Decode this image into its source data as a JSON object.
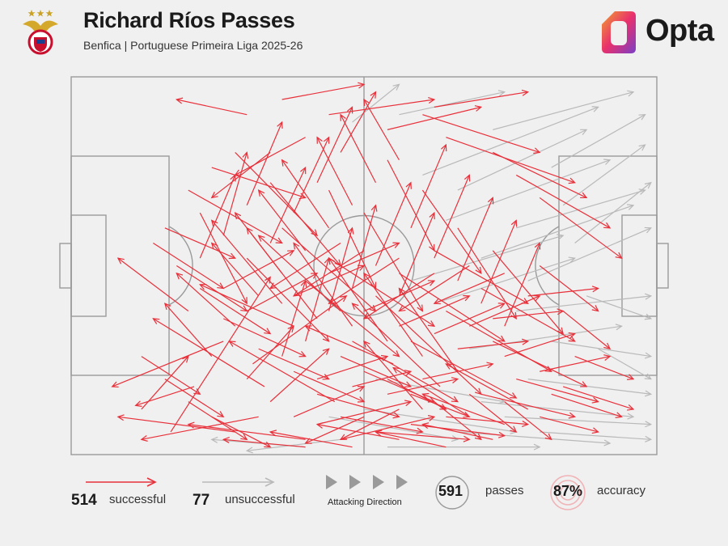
{
  "header": {
    "title": "Richard Ríos Passes",
    "subtitle": "Benfica | Portuguese Primeira Liga 2025-26",
    "brand": "Opta"
  },
  "colors": {
    "successful": "#e8303a",
    "unsuccessful": "#b9b9b9",
    "pitch_lines": "#9a9a9a",
    "background": "#f0f0f0"
  },
  "legend": {
    "successful_count": "514",
    "successful_label": "successful",
    "unsuccessful_count": "77",
    "unsuccessful_label": "unsuccessful",
    "direction_label": "Attacking Direction",
    "passes_count": "591",
    "passes_label": "passes",
    "accuracy_value": "87%",
    "accuracy_label": "accuracy"
  },
  "chart_data": {
    "type": "scatter",
    "description_units": "pitch coordinates 0-100 (x: own goal to opponent goal, y: top to bottom touchline)",
    "xlim": [
      0,
      100
    ],
    "ylim": [
      0,
      100
    ],
    "totals": {
      "passes": 591,
      "successful": 514,
      "unsuccessful": 77,
      "accuracy_pct": 87
    },
    "series": [
      {
        "name": "successful",
        "passes": [
          [
            17,
            94,
            34,
            53
          ],
          [
            12,
            88,
            20,
            74
          ],
          [
            21,
            82,
            11,
            87
          ],
          [
            26,
            70,
            7,
            82
          ],
          [
            33,
            82,
            14,
            64
          ],
          [
            40,
            96,
            20,
            92
          ],
          [
            31,
            76,
            47,
            58
          ],
          [
            45,
            86,
            27,
            70
          ],
          [
            20,
            62,
            8,
            48
          ],
          [
            38,
            66,
            22,
            55
          ],
          [
            46,
            62,
            32,
            42
          ],
          [
            55,
            76,
            40,
            66
          ],
          [
            60,
            88,
            50,
            70
          ],
          [
            63,
            82,
            48,
            60
          ],
          [
            68,
            90,
            55,
            77
          ],
          [
            74,
            92,
            60,
            84
          ],
          [
            78,
            88,
            64,
            76
          ],
          [
            52,
            58,
            70,
            84
          ],
          [
            44,
            48,
            62,
            66
          ],
          [
            56,
            52,
            74,
            70
          ],
          [
            62,
            46,
            78,
            60
          ],
          [
            70,
            56,
            86,
            70
          ],
          [
            64,
            62,
            82,
            78
          ],
          [
            58,
            70,
            76,
            85
          ],
          [
            72,
            70,
            88,
            82
          ],
          [
            48,
            70,
            66,
            86
          ],
          [
            40,
            54,
            56,
            74
          ],
          [
            36,
            40,
            52,
            62
          ],
          [
            30,
            48,
            44,
            70
          ],
          [
            34,
            28,
            46,
            50
          ],
          [
            28,
            20,
            42,
            42
          ],
          [
            22,
            36,
            30,
            60
          ],
          [
            44,
            30,
            52,
            56
          ],
          [
            50,
            36,
            60,
            62
          ],
          [
            54,
            22,
            62,
            46
          ],
          [
            60,
            30,
            70,
            52
          ],
          [
            66,
            40,
            76,
            64
          ],
          [
            72,
            46,
            84,
            68
          ],
          [
            80,
            50,
            90,
            62
          ],
          [
            84,
            62,
            92,
            72
          ],
          [
            86,
            74,
            96,
            80
          ],
          [
            82,
            84,
            94,
            90
          ],
          [
            76,
            80,
            90,
            86
          ],
          [
            70,
            84,
            86,
            90
          ],
          [
            64,
            90,
            78,
            92
          ],
          [
            58,
            92,
            74,
            95
          ],
          [
            52,
            94,
            68,
            96
          ],
          [
            46,
            90,
            60,
            94
          ],
          [
            42,
            84,
            56,
            90
          ],
          [
            38,
            78,
            50,
            86
          ],
          [
            32,
            72,
            44,
            80
          ],
          [
            26,
            64,
            40,
            74
          ],
          [
            22,
            56,
            34,
            68
          ],
          [
            18,
            50,
            30,
            62
          ],
          [
            14,
            44,
            26,
            56
          ],
          [
            36,
            60,
            24,
            38
          ],
          [
            42,
            64,
            30,
            40
          ],
          [
            48,
            66,
            38,
            44
          ],
          [
            54,
            70,
            44,
            48
          ],
          [
            60,
            74,
            50,
            52
          ],
          [
            66,
            78,
            56,
            56
          ],
          [
            38,
            90,
            50,
            82
          ],
          [
            34,
            86,
            44,
            72
          ],
          [
            30,
            80,
            38,
            66
          ],
          [
            42,
            80,
            54,
            74
          ],
          [
            48,
            82,
            58,
            78
          ],
          [
            54,
            84,
            66,
            80
          ],
          [
            60,
            80,
            72,
            76
          ],
          [
            66,
            72,
            78,
            70
          ],
          [
            72,
            64,
            84,
            62
          ],
          [
            78,
            58,
            90,
            56
          ],
          [
            24,
            74,
            16,
            60
          ],
          [
            28,
            66,
            18,
            52
          ],
          [
            32,
            58,
            24,
            44
          ],
          [
            36,
            52,
            28,
            36
          ],
          [
            40,
            46,
            32,
            30
          ],
          [
            44,
            40,
            36,
            22
          ],
          [
            48,
            34,
            42,
            16
          ],
          [
            52,
            28,
            46,
            10
          ],
          [
            56,
            22,
            50,
            6
          ],
          [
            30,
            34,
            36,
            12
          ],
          [
            26,
            42,
            30,
            20
          ],
          [
            22,
            48,
            28,
            26
          ],
          [
            34,
            44,
            40,
            24
          ],
          [
            38,
            36,
            44,
            16
          ],
          [
            42,
            28,
            48,
            8
          ],
          [
            46,
            20,
            52,
            4
          ],
          [
            58,
            40,
            64,
            18
          ],
          [
            62,
            48,
            68,
            26
          ],
          [
            66,
            54,
            72,
            32
          ],
          [
            70,
            60,
            76,
            38
          ],
          [
            74,
            66,
            80,
            44
          ],
          [
            52,
            50,
            58,
            28
          ],
          [
            56,
            58,
            62,
            36
          ],
          [
            48,
            56,
            52,
            34
          ],
          [
            44,
            62,
            48,
            40
          ],
          [
            40,
            70,
            44,
            48
          ],
          [
            36,
            74,
            40,
            54
          ],
          [
            32,
            90,
            12,
            96
          ],
          [
            28,
            94,
            8,
            90
          ],
          [
            50,
            90,
            40,
            97
          ],
          [
            56,
            88,
            46,
            96
          ],
          [
            62,
            86,
            70,
            96
          ],
          [
            68,
            84,
            76,
            94
          ],
          [
            74,
            86,
            82,
            96
          ],
          [
            80,
            90,
            90,
            94
          ],
          [
            46,
            74,
            58,
            82
          ],
          [
            50,
            78,
            62,
            86
          ],
          [
            54,
            80,
            64,
            88
          ],
          [
            58,
            84,
            68,
            90
          ],
          [
            20,
            30,
            36,
            44
          ],
          [
            16,
            40,
            28,
            48
          ],
          [
            24,
            24,
            40,
            32
          ],
          [
            60,
            10,
            80,
            20
          ],
          [
            64,
            16,
            86,
            28
          ],
          [
            72,
            20,
            88,
            32
          ],
          [
            76,
            26,
            92,
            40
          ],
          [
            80,
            32,
            94,
            48
          ],
          [
            30,
            10,
            18,
            6
          ],
          [
            36,
            6,
            50,
            2
          ],
          [
            44,
            10,
            62,
            6
          ],
          [
            54,
            14,
            70,
            8
          ],
          [
            62,
            8,
            78,
            4
          ],
          [
            40,
            16,
            28,
            26
          ],
          [
            34,
            20,
            24,
            32
          ],
          [
            46,
            44,
            34,
            56
          ],
          [
            50,
            46,
            38,
            58
          ],
          [
            56,
            48,
            44,
            60
          ],
          [
            62,
            52,
            50,
            64
          ],
          [
            68,
            50,
            56,
            62
          ],
          [
            74,
            52,
            62,
            60
          ],
          [
            38,
            58,
            50,
            50
          ],
          [
            44,
            52,
            56,
            44
          ],
          [
            50,
            62,
            62,
            54
          ],
          [
            56,
            66,
            68,
            58
          ],
          [
            62,
            68,
            74,
            60
          ],
          [
            68,
            66,
            80,
            58
          ],
          [
            74,
            74,
            86,
            68
          ],
          [
            80,
            78,
            92,
            74
          ],
          [
            84,
            82,
            96,
            88
          ],
          [
            40,
            98,
            26,
            96
          ],
          [
            48,
            98,
            34,
            94
          ],
          [
            56,
            96,
            42,
            92
          ],
          [
            64,
            98,
            52,
            94
          ],
          [
            72,
            96,
            60,
            92
          ],
          [
            20,
            86,
            30,
            96
          ],
          [
            24,
            90,
            34,
            98
          ],
          [
            16,
            80,
            26,
            90
          ],
          [
            12,
            74,
            22,
            84
          ],
          [
            30,
            62,
            42,
            52
          ],
          [
            26,
            56,
            38,
            46
          ],
          [
            42,
            92,
            58,
            86
          ],
          [
            46,
            96,
            62,
            90
          ]
        ]
      },
      {
        "name": "unsuccessful",
        "passes": [
          [
            78,
            54,
            99,
            40
          ],
          [
            70,
            48,
            96,
            34
          ],
          [
            64,
            38,
            92,
            22
          ],
          [
            60,
            26,
            90,
            8
          ],
          [
            72,
            14,
            96,
            4
          ],
          [
            76,
            62,
            99,
            58
          ],
          [
            82,
            70,
            99,
            74
          ],
          [
            78,
            80,
            99,
            84
          ],
          [
            74,
            90,
            99,
            92
          ],
          [
            66,
            94,
            92,
            97
          ],
          [
            54,
            98,
            80,
            98
          ],
          [
            46,
            96,
            30,
            99
          ],
          [
            40,
            98,
            24,
            96
          ],
          [
            86,
            44,
            99,
            28
          ],
          [
            88,
            58,
            99,
            64
          ],
          [
            84,
            34,
            98,
            18
          ],
          [
            90,
            72,
            99,
            80
          ],
          [
            62,
            60,
            86,
            48
          ],
          [
            58,
            54,
            84,
            42
          ],
          [
            68,
            72,
            94,
            66
          ],
          [
            50,
            88,
            76,
            94
          ],
          [
            44,
            90,
            66,
            96
          ],
          [
            70,
            86,
            96,
            90
          ],
          [
            80,
            94,
            99,
            96
          ],
          [
            76,
            40,
            98,
            30
          ],
          [
            66,
            30,
            88,
            14
          ],
          [
            82,
            24,
            98,
            10
          ],
          [
            52,
            80,
            74,
            86
          ],
          [
            48,
            12,
            56,
            2
          ],
          [
            56,
            10,
            74,
            4
          ]
        ]
      }
    ]
  }
}
